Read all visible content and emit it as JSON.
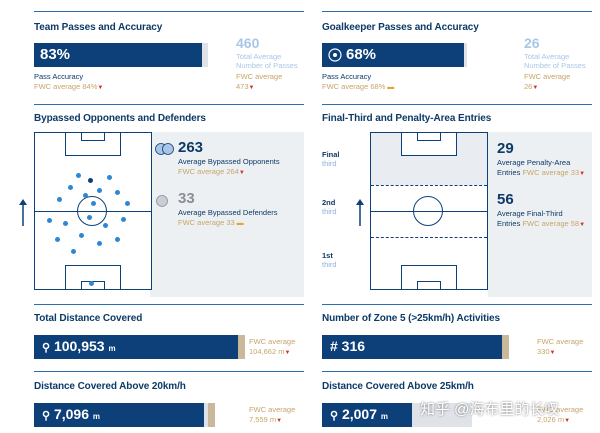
{
  "team_passes": {
    "title": "Team Passes and Accuracy",
    "value": "83%",
    "value_fraction": 0.83,
    "label": "Pass Accuracy",
    "fwc_avg": "FWC average 84%",
    "total_avg_value": "460",
    "total_avg_label1": "Total Average",
    "total_avg_label2": "Number of Passes",
    "fwc_avg_label": "FWC average",
    "fwc_avg_value": "473"
  },
  "gk_passes": {
    "title": "Goalkeeper Passes and Accuracy",
    "value": "68%",
    "value_fraction": 0.68,
    "label": "Pass Accuracy",
    "fwc_avg": "FWC average 68%",
    "total_avg_value": "26",
    "total_avg_label1": "Total Average",
    "total_avg_label2": "Number of Passes",
    "fwc_avg_label": "FWC average",
    "fwc_avg_value": "26"
  },
  "bypassed": {
    "title": "Bypassed Opponents and Defenders",
    "opponents_value": "263",
    "opponents_label": "Average Bypassed Opponents",
    "opponents_fwc": "FWC average 264",
    "defenders_value": "33",
    "defenders_label": "Average Bypassed Defenders",
    "defenders_fwc": "FWC average 33"
  },
  "final_third": {
    "title": "Final-Third and Penalty-Area Entries",
    "zone_final": "Final",
    "zone_final_sub": "third",
    "zone_2nd": "2nd",
    "zone_2nd_sub": "third",
    "zone_1st": "1st",
    "zone_1st_sub": "third",
    "penalty_value": "29",
    "penalty_label1": "Average Penalty-Area",
    "penalty_label2": "Entries",
    "penalty_fwc": "FWC average 33",
    "final_value": "56",
    "final_label1": "Average Final-Third",
    "final_label2": "Entries",
    "final_fwc": "FWC average 58"
  },
  "distance": {
    "title": "Total Distance Covered",
    "value": "100,953",
    "unit": "m",
    "fwc_label": "FWC average",
    "fwc_value": "104,662 m"
  },
  "zone5": {
    "title": "Number of Zone 5 (>25km/h) Activities",
    "value": "# 316",
    "fwc_label": "FWC average",
    "fwc_value": "330"
  },
  "dist20": {
    "title": "Distance Covered Above 20km/h",
    "value": "7,096",
    "unit": "m",
    "fwc_label": "FWC average",
    "fwc_value": "7,559 m"
  },
  "dist25": {
    "title": "Distance Covered Above 25km/h",
    "value": "2,007",
    "unit": "m",
    "fwc_label": "FWC average",
    "fwc_value": "2,026 m"
  },
  "watermark": "知乎 @海布里的长叹",
  "colors": {
    "navy": "#0d3f78",
    "accent_blue": "#2f87d3",
    "fwc_gold": "#c8a46a",
    "down_red": "#d0342c",
    "pale_blue": "#a9c6e6"
  },
  "icons": [
    "trend-down-icon",
    "trend-flat-icon",
    "location-pin-icon",
    "football-icon",
    "arrow-up-icon"
  ]
}
